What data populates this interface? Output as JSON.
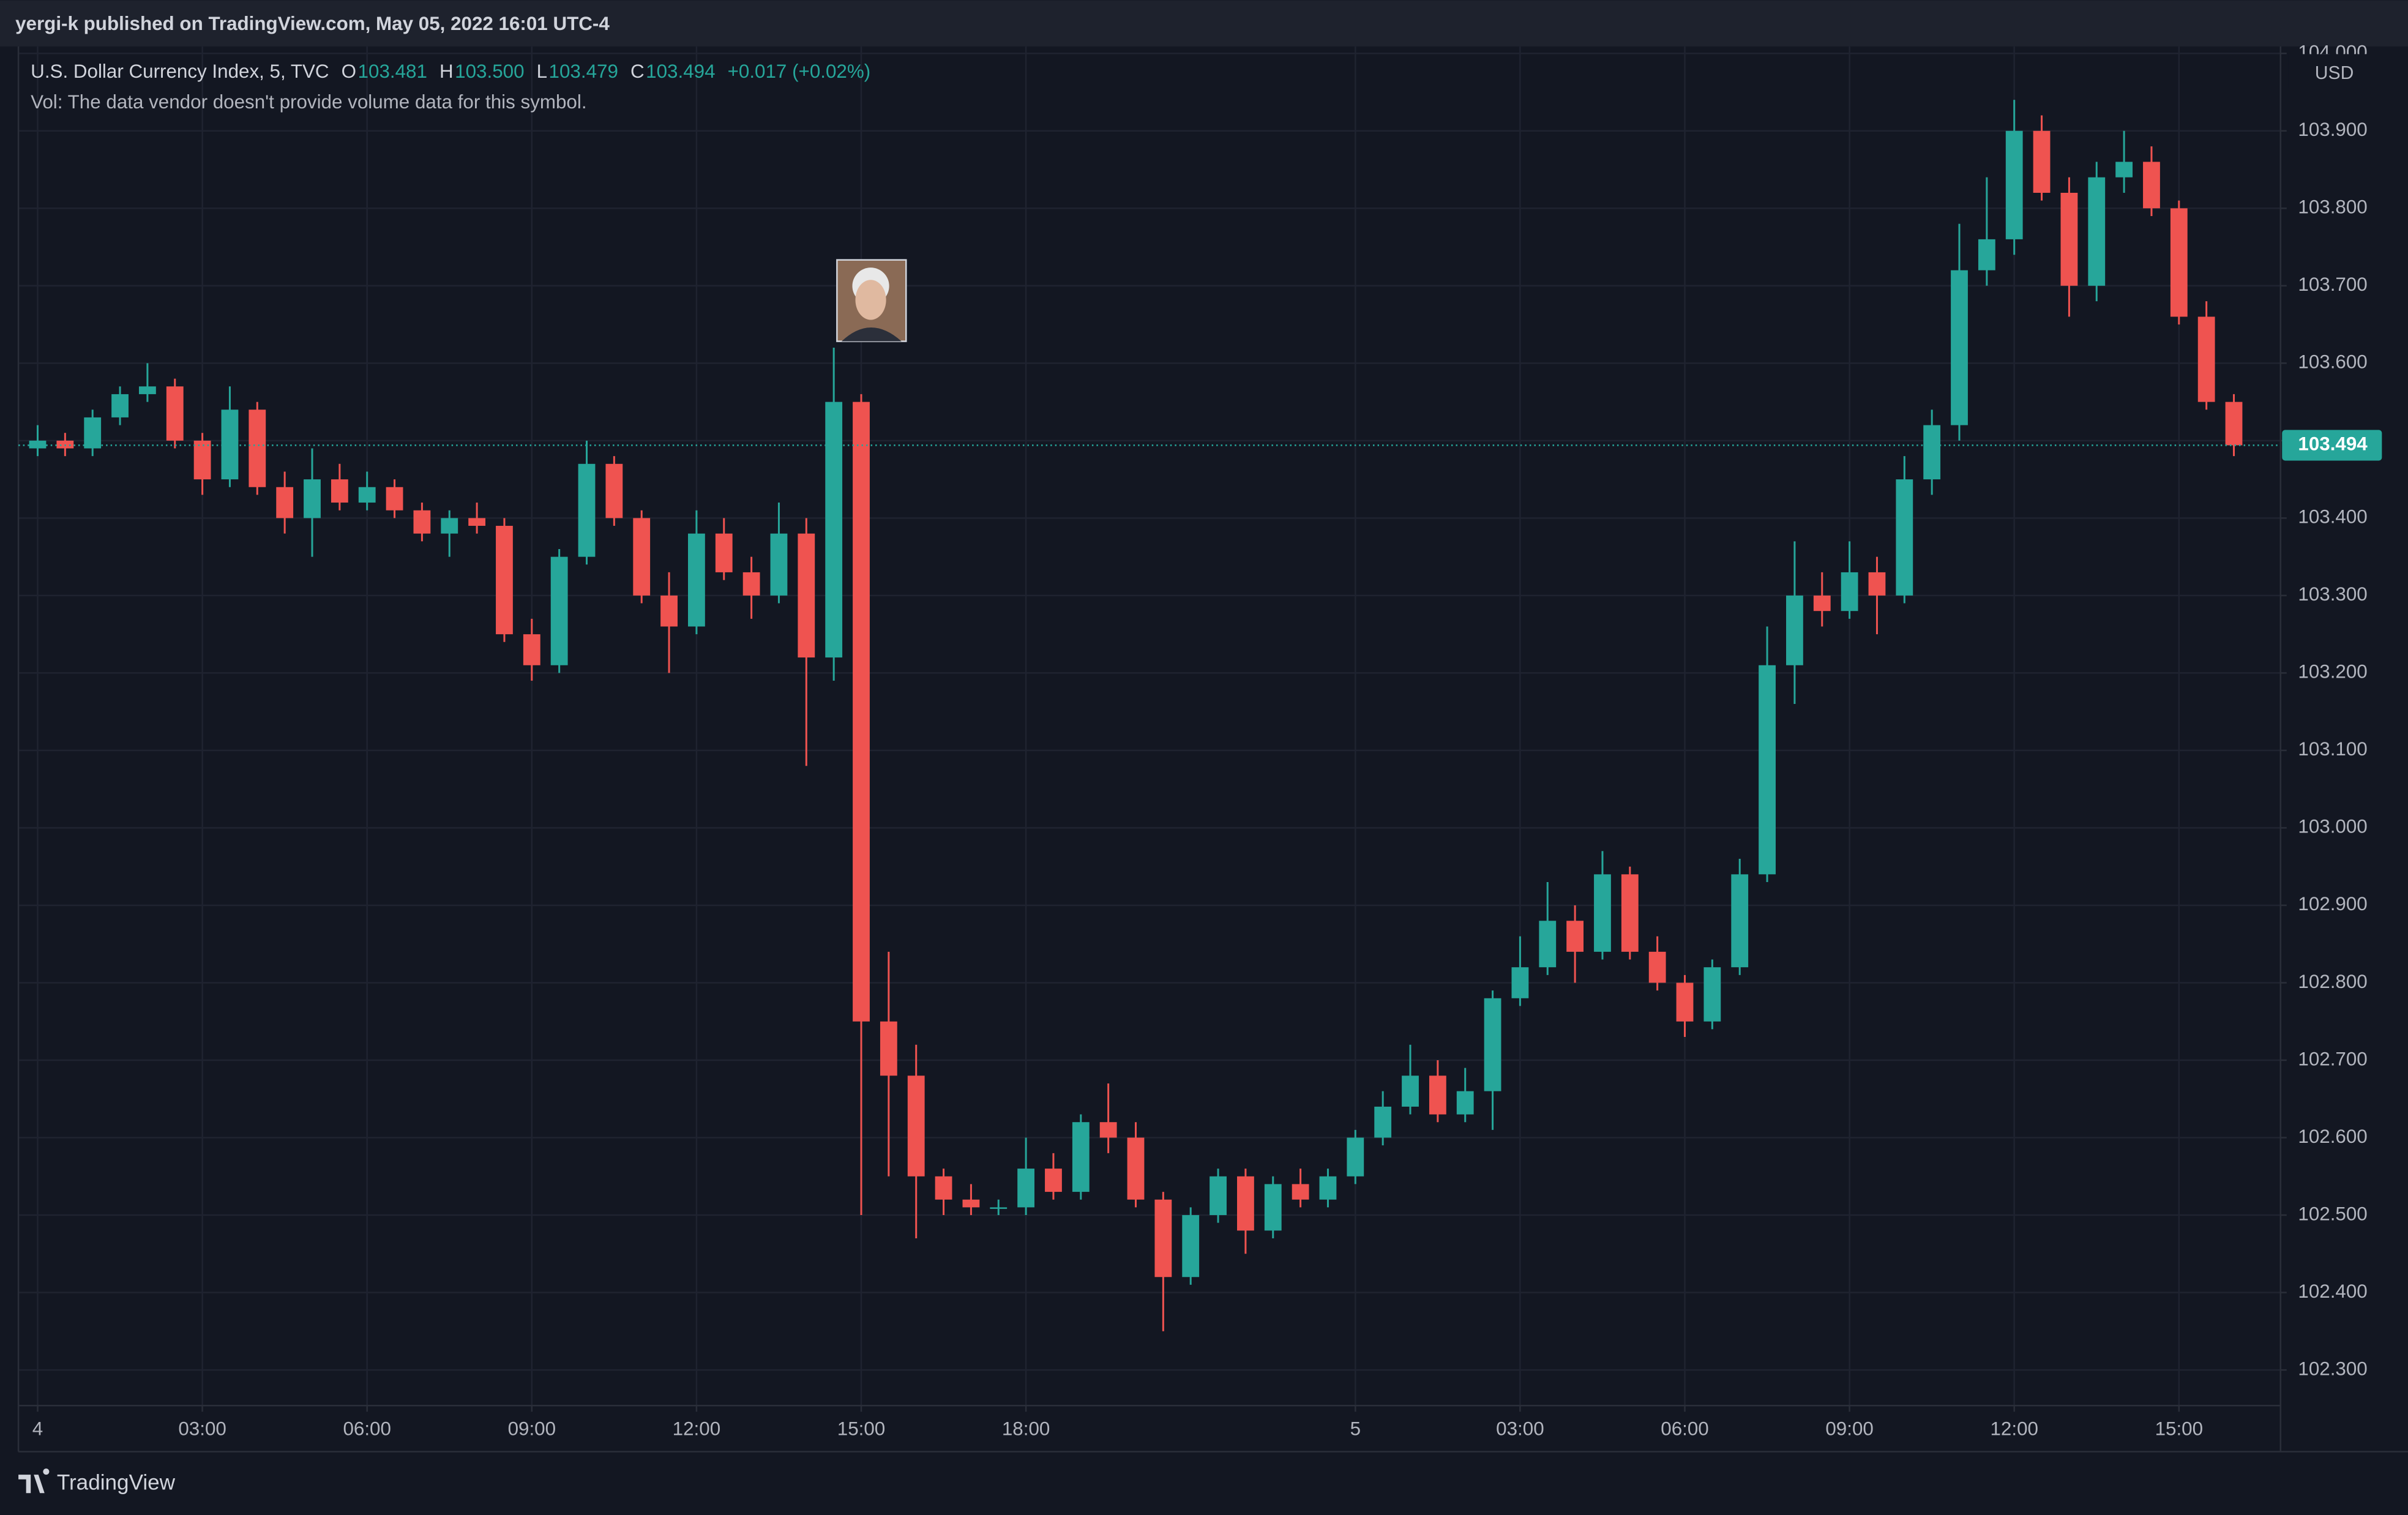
{
  "header": {
    "text": "yergi-k published on TradingView.com, May 05, 2022 16:01 UTC-4"
  },
  "footer": {
    "brand": "TradingView"
  },
  "chart_data": {
    "type": "candlestick",
    "symbol": "U.S. Dollar Currency Index, 5, TVC",
    "ohlc_legend": [
      {
        "label": "O",
        "value": "103.481"
      },
      {
        "label": "H",
        "value": "103.500"
      },
      {
        "label": "L",
        "value": "103.479"
      },
      {
        "label": "C",
        "value": "103.494"
      }
    ],
    "change": "+0.017 (+0.02%)",
    "volume_note": "Vol: The data vendor doesn't provide volume data for this symbol.",
    "currency": "USD",
    "up_color": "#26a69a",
    "down_color": "#ef5350",
    "grid": true,
    "last_price": 103.494,
    "x": [
      0,
      0.5,
      1,
      1.5,
      2,
      2.5,
      3,
      3.5,
      4,
      4.5,
      5,
      5.5,
      6,
      6.5,
      7,
      7.5,
      8,
      8.5,
      9,
      9.5,
      10,
      10.5,
      11,
      11.5,
      12,
      12.5,
      13,
      13.5,
      14,
      14.5,
      15,
      15.5,
      16,
      16.5,
      17,
      17.5,
      18,
      18.5,
      19,
      19.5,
      20,
      20.5,
      21,
      21.5,
      22,
      22.5,
      23,
      23.5,
      24,
      24.5,
      25,
      25.5,
      26,
      26.5,
      27,
      27.5,
      28,
      28.5,
      29,
      29.5,
      30,
      30.5,
      31,
      31.5,
      32,
      32.5,
      33,
      33.5,
      34,
      34.5,
      35,
      35.5,
      36,
      36.5,
      37,
      37.5,
      38,
      38.5,
      39,
      39.5,
      40
    ],
    "open": [
      103.49,
      103.5,
      103.49,
      103.53,
      103.56,
      103.57,
      103.5,
      103.45,
      103.54,
      103.44,
      103.4,
      103.45,
      103.42,
      103.44,
      103.41,
      103.38,
      103.4,
      103.39,
      103.25,
      103.21,
      103.35,
      103.47,
      103.4,
      103.3,
      103.26,
      103.38,
      103.33,
      103.3,
      103.38,
      103.22,
      103.55,
      102.75,
      102.68,
      102.55,
      102.52,
      102.51,
      102.51,
      102.56,
      102.53,
      102.62,
      102.6,
      102.52,
      102.42,
      102.5,
      102.55,
      102.48,
      102.54,
      102.52,
      102.55,
      102.6,
      102.64,
      102.68,
      102.63,
      102.66,
      102.78,
      102.82,
      102.88,
      102.84,
      102.94,
      102.84,
      102.8,
      102.75,
      102.82,
      102.94,
      103.21,
      103.3,
      103.28,
      103.33,
      103.3,
      103.45,
      103.52,
      103.72,
      103.76,
      103.9,
      103.82,
      103.7,
      103.84,
      103.86,
      103.8,
      103.66,
      103.55
    ],
    "high": [
      103.52,
      103.51,
      103.54,
      103.57,
      103.6,
      103.58,
      103.51,
      103.57,
      103.55,
      103.46,
      103.49,
      103.47,
      103.46,
      103.45,
      103.42,
      103.41,
      103.42,
      103.4,
      103.27,
      103.36,
      103.5,
      103.48,
      103.41,
      103.33,
      103.41,
      103.4,
      103.35,
      103.42,
      103.4,
      103.62,
      103.56,
      102.84,
      102.72,
      102.56,
      102.54,
      102.52,
      102.6,
      102.58,
      102.63,
      102.67,
      102.62,
      102.53,
      102.51,
      102.56,
      102.56,
      102.55,
      102.56,
      102.56,
      102.61,
      102.66,
      102.72,
      102.7,
      102.69,
      102.79,
      102.86,
      102.93,
      102.9,
      102.97,
      102.95,
      102.86,
      102.81,
      102.83,
      102.96,
      103.26,
      103.37,
      103.33,
      103.37,
      103.35,
      103.48,
      103.54,
      103.78,
      103.84,
      103.94,
      103.92,
      103.84,
      103.86,
      103.9,
      103.88,
      103.81,
      103.68,
      103.56
    ],
    "low": [
      103.48,
      103.48,
      103.48,
      103.52,
      103.55,
      103.49,
      103.43,
      103.44,
      103.43,
      103.38,
      103.35,
      103.41,
      103.41,
      103.4,
      103.37,
      103.35,
      103.38,
      103.24,
      103.19,
      103.2,
      103.34,
      103.39,
      103.29,
      103.2,
      103.25,
      103.32,
      103.27,
      103.29,
      103.08,
      103.19,
      102.5,
      102.55,
      102.47,
      102.5,
      102.5,
      102.5,
      102.5,
      102.52,
      102.52,
      102.58,
      102.51,
      102.35,
      102.41,
      102.49,
      102.45,
      102.47,
      102.51,
      102.51,
      102.54,
      102.59,
      102.63,
      102.62,
      102.62,
      102.61,
      102.77,
      102.81,
      102.8,
      102.83,
      102.83,
      102.79,
      102.73,
      102.74,
      102.81,
      102.93,
      103.16,
      103.26,
      103.27,
      103.25,
      103.29,
      103.43,
      103.5,
      103.7,
      103.74,
      103.81,
      103.66,
      103.68,
      103.82,
      103.79,
      103.65,
      103.54,
      103.48
    ],
    "close": [
      103.5,
      103.49,
      103.53,
      103.56,
      103.57,
      103.5,
      103.45,
      103.54,
      103.44,
      103.4,
      103.45,
      103.42,
      103.44,
      103.41,
      103.38,
      103.4,
      103.39,
      103.25,
      103.21,
      103.35,
      103.47,
      103.4,
      103.3,
      103.26,
      103.38,
      103.33,
      103.3,
      103.38,
      103.22,
      103.55,
      102.75,
      102.68,
      102.55,
      102.52,
      102.51,
      102.51,
      102.56,
      102.53,
      102.62,
      102.6,
      102.52,
      102.42,
      102.5,
      102.55,
      102.48,
      102.54,
      102.52,
      102.55,
      102.6,
      102.64,
      102.68,
      102.63,
      102.66,
      102.78,
      102.82,
      102.88,
      102.84,
      102.94,
      102.84,
      102.8,
      102.75,
      102.82,
      102.94,
      103.21,
      103.3,
      103.28,
      103.33,
      103.3,
      103.45,
      103.52,
      103.72,
      103.76,
      103.9,
      103.82,
      103.7,
      103.84,
      103.86,
      103.8,
      103.66,
      103.55,
      103.494
    ],
    "xlim": [
      -0.35,
      40.85
    ],
    "ylim": [
      102.254,
      104.009
    ],
    "xticks": [
      {
        "value": 0,
        "label": "4"
      },
      {
        "value": 3,
        "label": "03:00"
      },
      {
        "value": 6,
        "label": "06:00"
      },
      {
        "value": 9,
        "label": "09:00"
      },
      {
        "value": 12,
        "label": "12:00"
      },
      {
        "value": 15,
        "label": "15:00"
      },
      {
        "value": 18,
        "label": "18:00"
      },
      {
        "value": 24,
        "label": "5"
      },
      {
        "value": 27,
        "label": "03:00"
      },
      {
        "value": 30,
        "label": "06:00"
      },
      {
        "value": 33,
        "label": "09:00"
      },
      {
        "value": 36,
        "label": "12:00"
      },
      {
        "value": 39,
        "label": "15:00"
      }
    ],
    "yticks": [
      {
        "value": 102.3,
        "label": "102.300"
      },
      {
        "value": 102.4,
        "label": "102.400"
      },
      {
        "value": 102.5,
        "label": "102.500"
      },
      {
        "value": 102.6,
        "label": "102.600"
      },
      {
        "value": 102.7,
        "label": "102.700"
      },
      {
        "value": 102.8,
        "label": "102.800"
      },
      {
        "value": 102.9,
        "label": "102.900"
      },
      {
        "value": 103.0,
        "label": "103.000"
      },
      {
        "value": 103.1,
        "label": "103.100"
      },
      {
        "value": 103.2,
        "label": "103.200"
      },
      {
        "value": 103.3,
        "label": "103.300"
      },
      {
        "value": 103.4,
        "label": "103.400"
      },
      {
        "value": 103.5,
        "label": "103.500"
      },
      {
        "value": 103.6,
        "label": "103.600"
      },
      {
        "value": 103.7,
        "label": "103.700"
      },
      {
        "value": 103.8,
        "label": "103.800"
      },
      {
        "value": 103.9,
        "label": "103.900"
      },
      {
        "value": 104.0,
        "label": "104.000"
      }
    ]
  }
}
